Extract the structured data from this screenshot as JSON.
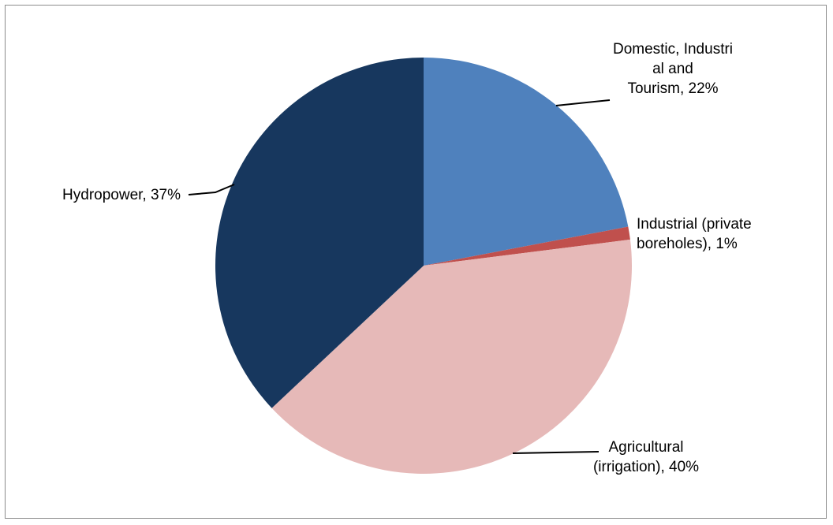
{
  "chart_data": {
    "type": "pie",
    "title": "",
    "slices": [
      {
        "label_lines": [
          "Domestic, Industri",
          "al and",
          "Tourism, 22%"
        ],
        "value": 22,
        "color": "#4f81bd"
      },
      {
        "label_lines": [
          "Industrial (private",
          "boreholes), 1%"
        ],
        "value": 1,
        "color": "#c0504d"
      },
      {
        "label_lines": [
          "Agricultural",
          "(irrigation), 40%"
        ],
        "value": 40,
        "color": "#e6b9b8"
      },
      {
        "label_lines": [
          "Hydropower, 37%"
        ],
        "value": 37,
        "color": "#17375e"
      }
    ],
    "start_angle_deg": 0,
    "direction": "clockwise",
    "legend": "none",
    "data_labels": "outside with leader lines"
  }
}
